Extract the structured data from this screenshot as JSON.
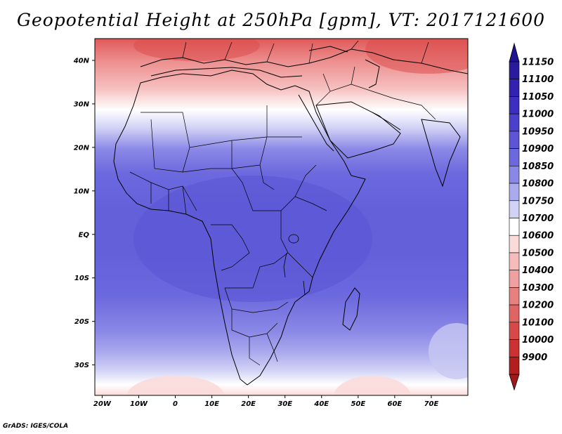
{
  "title": "Geopotential Height at 250hPa [gpm], VT: 2017121600",
  "credit": "GrADS: IGES/COLA",
  "map": {
    "region": "Africa",
    "projection": "lat-lon",
    "lon_range": [
      -22,
      80
    ],
    "lat_range": [
      -37,
      45
    ],
    "lat_ticks": [
      {
        "value": 40,
        "label": "40N"
      },
      {
        "value": 30,
        "label": "30N"
      },
      {
        "value": 20,
        "label": "20N"
      },
      {
        "value": 10,
        "label": "10N"
      },
      {
        "value": 0,
        "label": "EQ"
      },
      {
        "value": -10,
        "label": "10S"
      },
      {
        "value": -20,
        "label": "20S"
      },
      {
        "value": -30,
        "label": "30S"
      }
    ],
    "lon_ticks": [
      {
        "value": -20,
        "label": "20W"
      },
      {
        "value": -10,
        "label": "10W"
      },
      {
        "value": 0,
        "label": "0"
      },
      {
        "value": 10,
        "label": "10E"
      },
      {
        "value": 20,
        "label": "20E"
      },
      {
        "value": 30,
        "label": "30E"
      },
      {
        "value": 40,
        "label": "40E"
      },
      {
        "value": 50,
        "label": "50E"
      },
      {
        "value": 60,
        "label": "60E"
      },
      {
        "value": 70,
        "label": "70E"
      }
    ]
  },
  "colorbar": {
    "levels": [
      {
        "label": "11150",
        "color": "#2a1a9e"
      },
      {
        "label": "11100",
        "color": "#3322b0"
      },
      {
        "label": "11050",
        "color": "#3d2ec0"
      },
      {
        "label": "11000",
        "color": "#4a40cc"
      },
      {
        "label": "10950",
        "color": "#5c55d6"
      },
      {
        "label": "10900",
        "color": "#6c68de"
      },
      {
        "label": "10850",
        "color": "#8a88e6"
      },
      {
        "label": "10800",
        "color": "#aaaaee"
      },
      {
        "label": "10750",
        "color": "#d2d2f6"
      },
      {
        "label": "10700",
        "color": "#ffffff"
      },
      {
        "label": "10600",
        "color": "#fbdada"
      },
      {
        "label": "10500",
        "color": "#f6bcbc"
      },
      {
        "label": "10400",
        "color": "#f0a0a0"
      },
      {
        "label": "10300",
        "color": "#e88080"
      },
      {
        "label": "10200",
        "color": "#e06464"
      },
      {
        "label": "10100",
        "color": "#d84848"
      },
      {
        "label": "10000",
        "color": "#cc3232"
      },
      {
        "label": "9900",
        "color": "#b01e1e"
      }
    ],
    "top_arrow_color": "#1e1290",
    "bottom_arrow_color": "#a01818"
  }
}
